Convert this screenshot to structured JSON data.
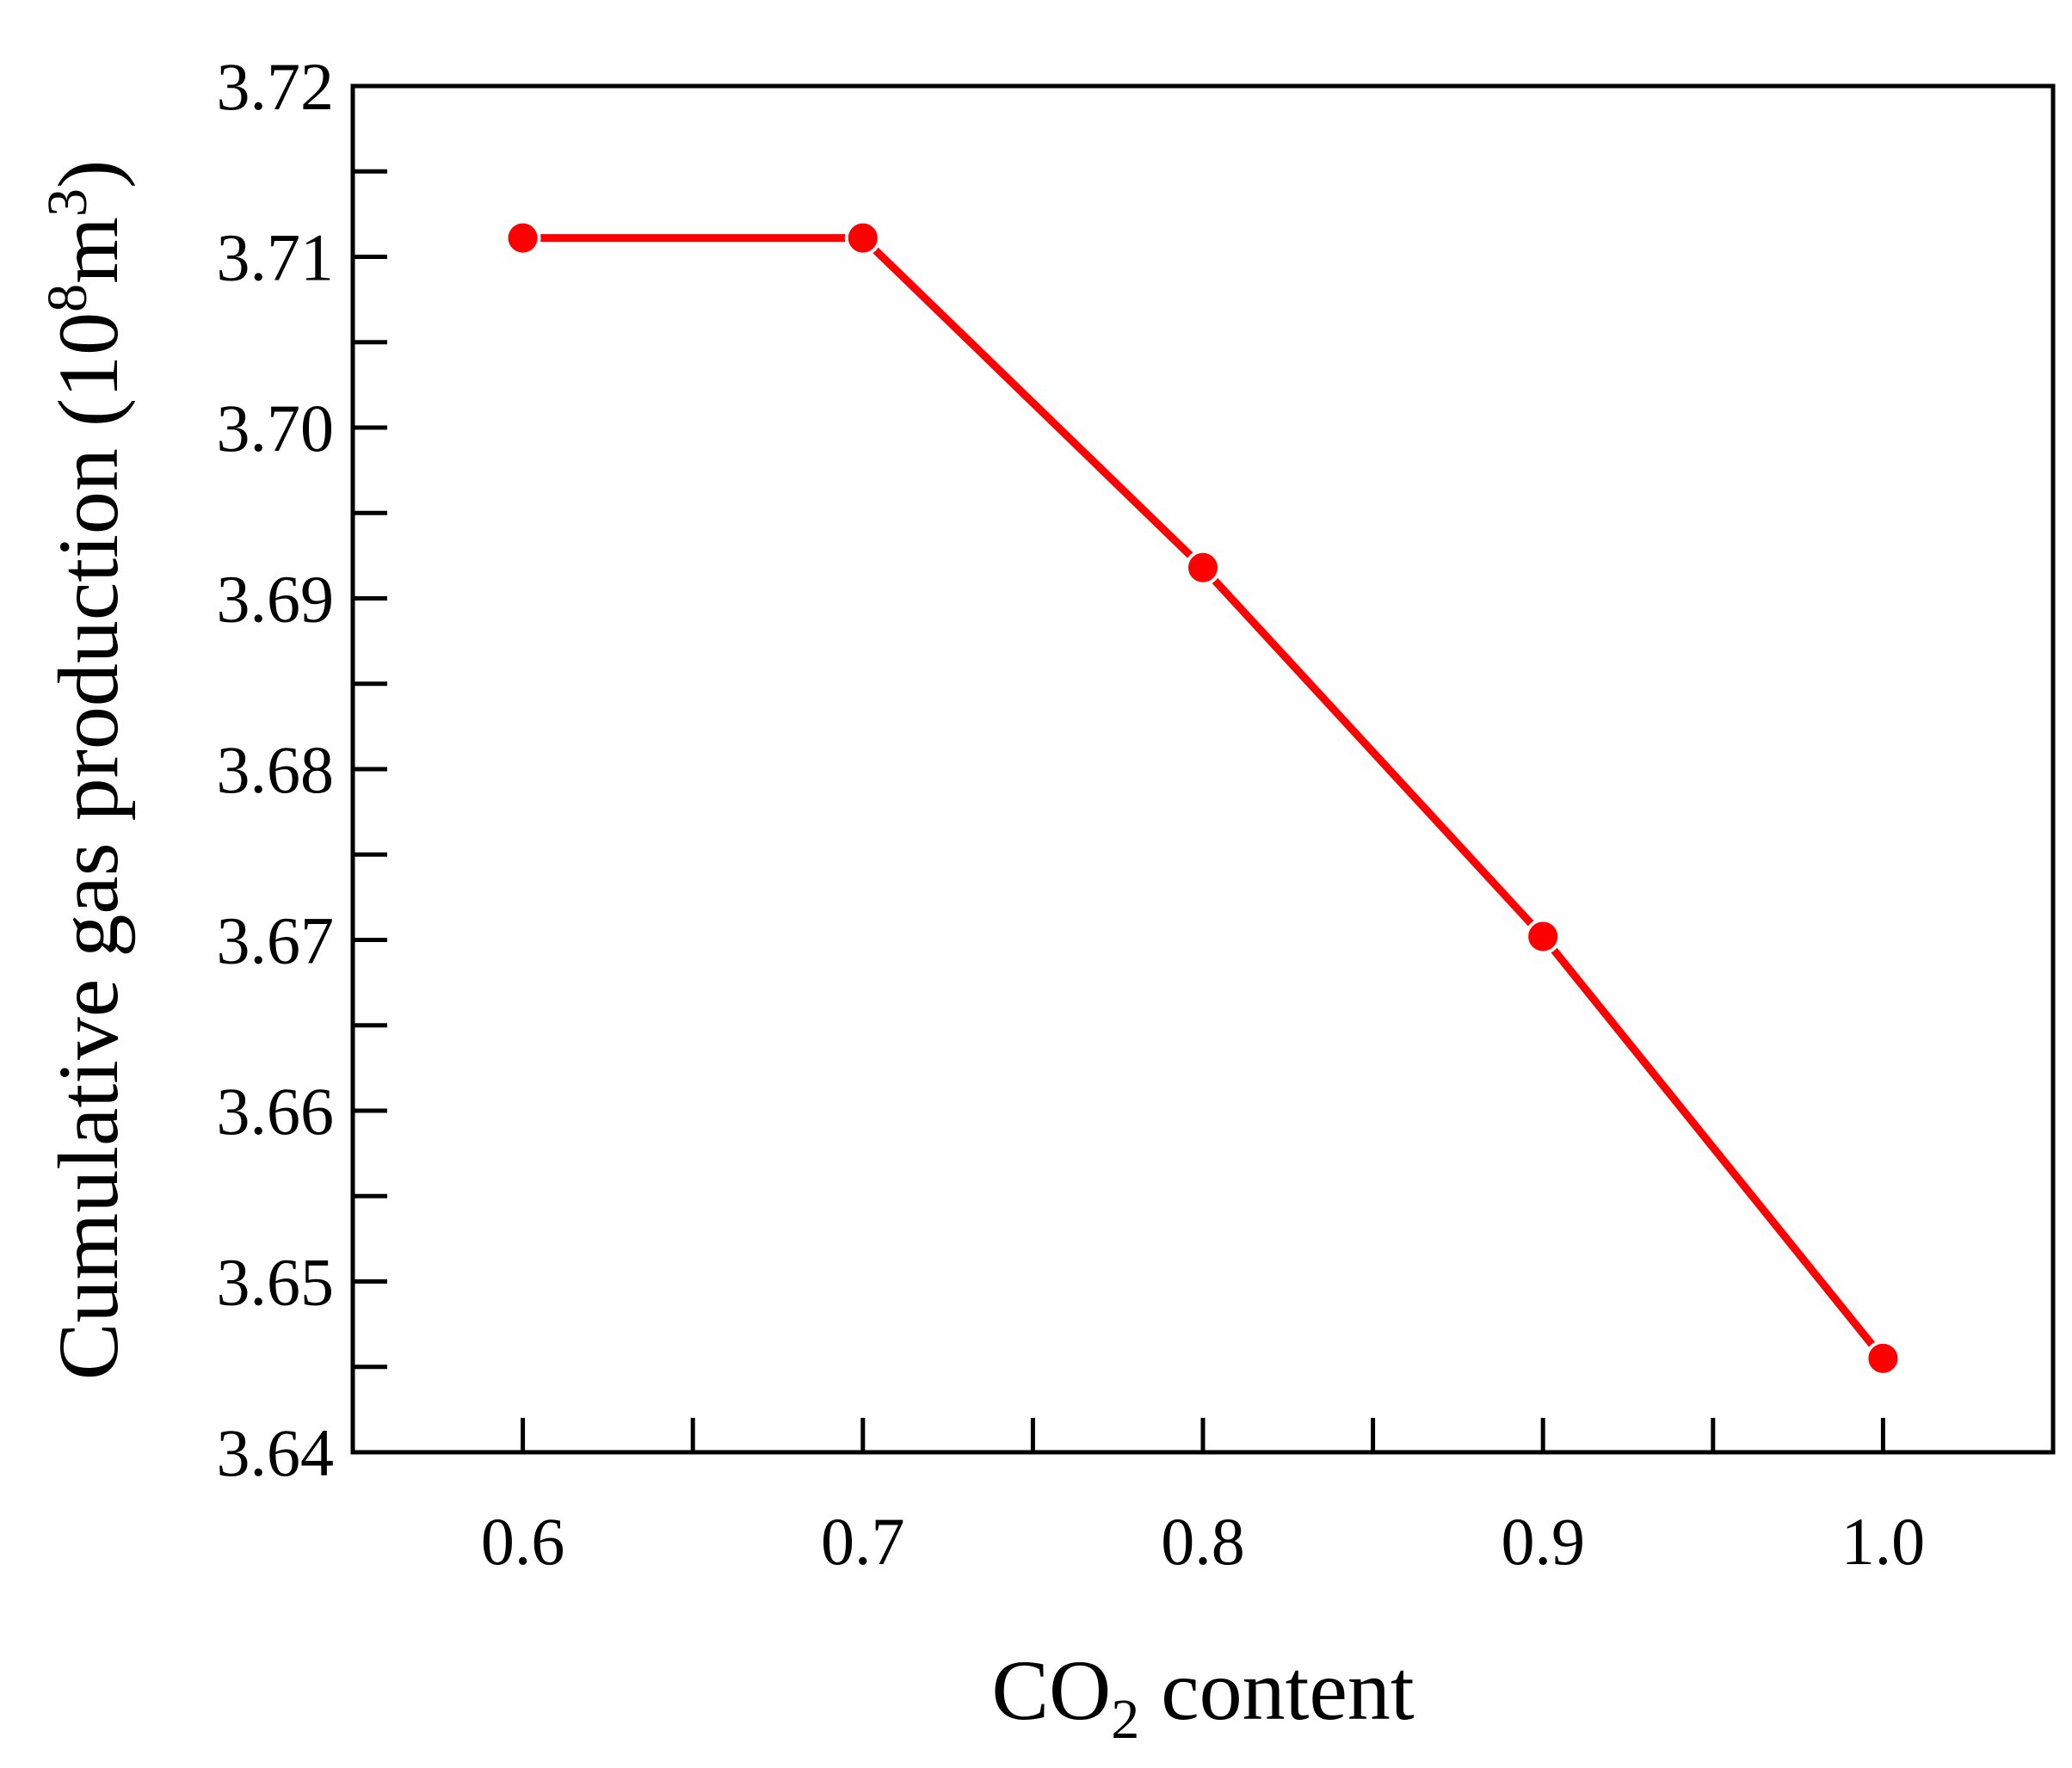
{
  "chart_data": {
    "type": "line",
    "xlabel": {
      "pre": "CO",
      "sub": "2",
      "post": " content"
    },
    "ylabel": {
      "pre": "Cumulative gas production (10",
      "sup1": "8",
      "mid": "m",
      "sup2": "3",
      "post": ")"
    },
    "xlim": [
      0.55,
      1.05
    ],
    "ylim": [
      3.64,
      3.72
    ],
    "x_ticks": [
      "0.6",
      "0.7",
      "0.8",
      "0.9",
      "1.0"
    ],
    "x_tick_values": [
      0.6,
      0.7,
      0.8,
      0.9,
      1.0
    ],
    "y_ticks": [
      "3.64",
      "3.65",
      "3.66",
      "3.67",
      "3.68",
      "3.69",
      "3.70",
      "3.71",
      "3.72"
    ],
    "y_tick_values": [
      3.64,
      3.65,
      3.66,
      3.67,
      3.68,
      3.69,
      3.7,
      3.71,
      3.72
    ],
    "series": [
      {
        "color": "#ff0000",
        "marker": "circle",
        "x": [
          0.6,
          0.7,
          0.8,
          0.9,
          1.0
        ],
        "y": [
          3.7111,
          3.7111,
          3.6918,
          3.6702,
          3.6455
        ]
      }
    ],
    "grid": false,
    "legend": "none"
  }
}
